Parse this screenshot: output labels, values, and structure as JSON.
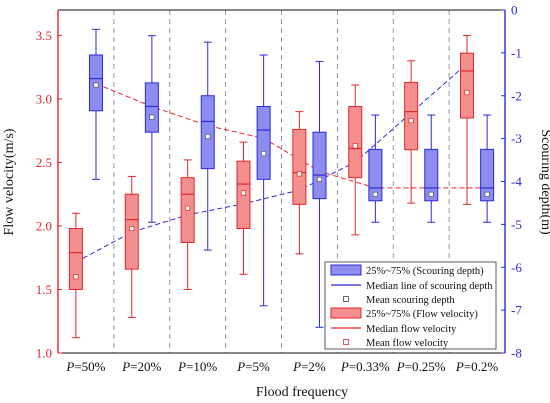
{
  "chart_data": {
    "type": "box",
    "xlabel": "Flood frequency",
    "ylabel_left": "Flow velocity(m/s)",
    "ylabel_right": "Scouring depth(m)",
    "categories": [
      "P=50%",
      "P=20%",
      "P=10%",
      "P=5%",
      "P=2%",
      "P=0.33%",
      "P=0.25%",
      "P=0.2%"
    ],
    "ylim_left": [
      1.0,
      3.7
    ],
    "ylim_right": [
      -8,
      0
    ],
    "yticks_left": [
      "1.0",
      "1.5",
      "2.0",
      "2.5",
      "3.0",
      "3.5"
    ],
    "yticks_right": [
      "0",
      "-1",
      "-2",
      "-3",
      "-4",
      "-5",
      "-6",
      "-7",
      "-8"
    ],
    "grid": "vertical dashed separators between categories",
    "legend_position": "bottom-right",
    "colors": {
      "velocity": "#e4262a",
      "velocity_fill": "#f48f90",
      "depth": "#2b2bd8",
      "depth_fill": "#8d8df0"
    },
    "series": [
      {
        "name": "Flow velocity",
        "axis": "left",
        "boxes": [
          {
            "min": 1.12,
            "q1": 1.5,
            "median": 1.79,
            "q3": 1.98,
            "max": 2.1,
            "mean": 1.6
          },
          {
            "min": 1.28,
            "q1": 1.66,
            "median": 2.05,
            "q3": 2.25,
            "max": 2.39,
            "mean": 1.98
          },
          {
            "min": 1.5,
            "q1": 1.87,
            "median": 2.25,
            "q3": 2.38,
            "max": 2.52,
            "mean": 2.14
          },
          {
            "min": 1.62,
            "q1": 1.98,
            "median": 2.33,
            "q3": 2.51,
            "max": 2.66,
            "mean": 2.26
          },
          {
            "min": 1.78,
            "q1": 2.17,
            "median": 2.42,
            "q3": 2.76,
            "max": 2.9,
            "mean": 2.41
          },
          {
            "min": 1.93,
            "q1": 2.38,
            "median": 2.61,
            "q3": 2.94,
            "max": 3.11,
            "mean": 2.63
          },
          {
            "min": 2.18,
            "q1": 2.6,
            "median": 2.9,
            "q3": 3.13,
            "max": 3.3,
            "mean": 2.83
          },
          {
            "min": 2.17,
            "q1": 2.85,
            "median": 3.22,
            "q3": 3.36,
            "max": 3.5,
            "mean": 3.05
          }
        ]
      },
      {
        "name": "Scouring depth",
        "axis": "right",
        "boxes": [
          {
            "min": -3.95,
            "q1": -2.35,
            "median": -1.6,
            "q3": -1.05,
            "max": -0.45,
            "mean": -1.75
          },
          {
            "min": -4.95,
            "q1": -2.85,
            "median": -2.25,
            "q3": -1.7,
            "max": -0.6,
            "mean": -2.5
          },
          {
            "min": -5.6,
            "q1": -3.7,
            "median": -2.6,
            "q3": -2.0,
            "max": -0.75,
            "mean": -2.95
          },
          {
            "min": -6.9,
            "q1": -3.95,
            "median": -2.8,
            "q3": -2.25,
            "max": -1.05,
            "mean": -3.35
          },
          {
            "min": -7.4,
            "q1": -4.4,
            "median": -3.85,
            "q3": -2.85,
            "max": -1.2,
            "mean": -3.95
          },
          {
            "min": -4.95,
            "q1": -4.45,
            "median": -4.15,
            "q3": -3.25,
            "max": -2.45,
            "mean": -4.3
          },
          {
            "min": -4.95,
            "q1": -4.45,
            "median": -4.15,
            "q3": -3.25,
            "max": -2.45,
            "mean": -4.3
          },
          {
            "min": -4.95,
            "q1": -4.45,
            "median": -4.15,
            "q3": -3.25,
            "max": -2.45,
            "mean": -4.3
          }
        ]
      }
    ],
    "trend_lines": {
      "depth_median": [
        -5.88,
        -5.18,
        -4.78,
        -4.52,
        -4.2,
        -3.55,
        -2.4,
        -1.25
      ],
      "velocity_median": [
        3.12,
        2.94,
        2.79,
        2.69,
        2.43,
        2.3,
        2.3,
        2.3
      ]
    },
    "legend": [
      "25%~75% (Scouring depth)",
      "Median line of scouring depth",
      "Mean scouring depth",
      "25%~75% (Flow velocity)",
      "Median flow velocity",
      "Mean flow velocity"
    ]
  }
}
